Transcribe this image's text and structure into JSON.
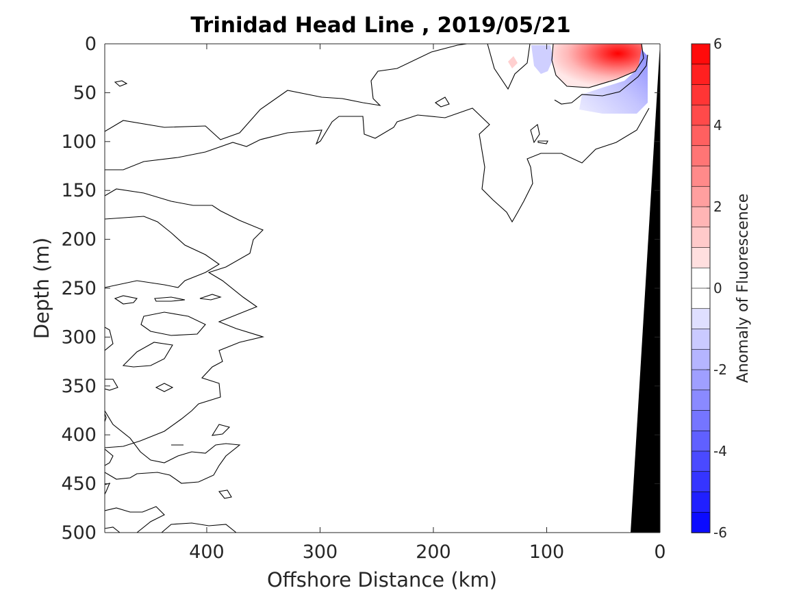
{
  "chart_data": {
    "type": "heatmap",
    "title": "Trinidad Head Line , 2019/05/21",
    "xlabel": "Offshore Distance (km)",
    "ylabel": "Depth (m)",
    "xlim": [
      490,
      0
    ],
    "x_reversed": true,
    "ylim": [
      0,
      500
    ],
    "y_reversed": true,
    "xticks": [
      400,
      300,
      200,
      100,
      0
    ],
    "yticks": [
      0,
      50,
      100,
      150,
      200,
      250,
      300,
      350,
      400,
      450,
      500
    ],
    "colorbar": {
      "label": "Anomaly of Fluorescence",
      "range": [
        -6,
        6
      ],
      "levels": 24,
      "ticks": [
        6,
        4,
        2,
        0,
        -2,
        -4,
        -6
      ],
      "cmap": "blue-white-red",
      "low_color": "#0000ff",
      "high_color": "#ff0000"
    },
    "contour_level": 0,
    "features": {
      "positive_core": {
        "x_km": 33,
        "depth_m": 8,
        "value": 6
      },
      "positive_patch": {
        "x_km": [
          5,
          90
        ],
        "depth_m": [
          0,
          48
        ]
      },
      "positive_small": {
        "x_km": 130,
        "depth_m": 18,
        "value": 0.6
      },
      "negative_patches": [
        {
          "x_km": [
            10,
            70
          ],
          "depth_m": [
            15,
            70
          ],
          "value": -1.2
        },
        {
          "x_km": [
            90,
            110
          ],
          "depth_m": [
            0,
            25
          ],
          "value": -0.8
        }
      ],
      "bathymetry": {
        "color": "#000000",
        "shelf_surface_x_km": 0,
        "shelf_bottom_x_km": 25,
        "max_depth_m": 500
      }
    }
  }
}
